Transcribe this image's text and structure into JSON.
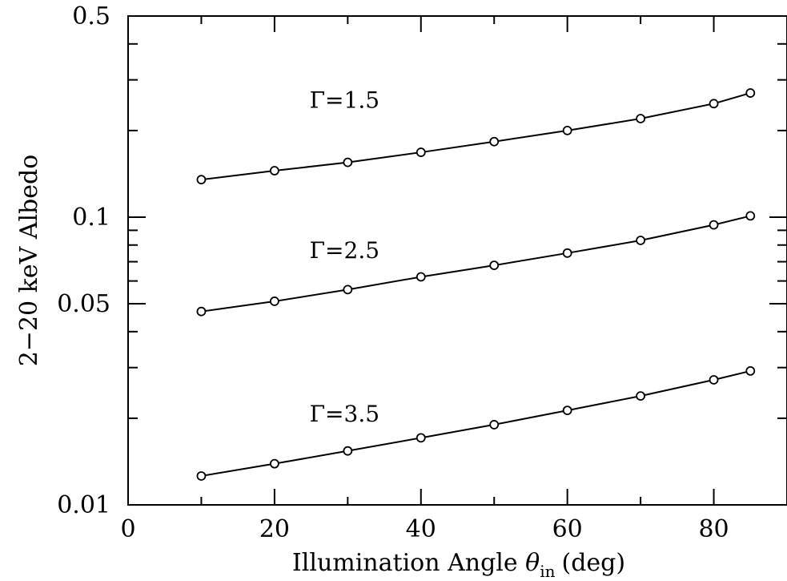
{
  "chart_data": {
    "type": "line",
    "xlabel": "Illumination Angle",
    "xlabel_symbol": "θ",
    "xlabel_subscript": "in",
    "xlabel_unit": "(deg)",
    "ylabel": "2−20 keV Albedo",
    "xlim": [
      0,
      90
    ],
    "ylim": [
      0.01,
      0.5
    ],
    "yscale": "log",
    "x_ticks": [
      "0",
      "20",
      "40",
      "60",
      "80"
    ],
    "y_ticks": [
      "0.01",
      "0.05",
      "0.1",
      "0.5"
    ],
    "x": [
      10,
      20,
      30,
      40,
      50,
      60,
      70,
      80,
      85
    ],
    "series": [
      {
        "name": "Γ=1.5",
        "values": [
          0.135,
          0.145,
          0.155,
          0.168,
          0.183,
          0.2,
          0.22,
          0.248,
          0.27
        ]
      },
      {
        "name": "Γ=2.5",
        "values": [
          0.047,
          0.051,
          0.056,
          0.062,
          0.068,
          0.075,
          0.083,
          0.094,
          0.101
        ]
      },
      {
        "name": "Γ=3.5",
        "values": [
          0.0126,
          0.0139,
          0.0154,
          0.0171,
          0.019,
          0.0213,
          0.0239,
          0.0272,
          0.0292
        ]
      }
    ],
    "grid": false,
    "legend": "none"
  }
}
